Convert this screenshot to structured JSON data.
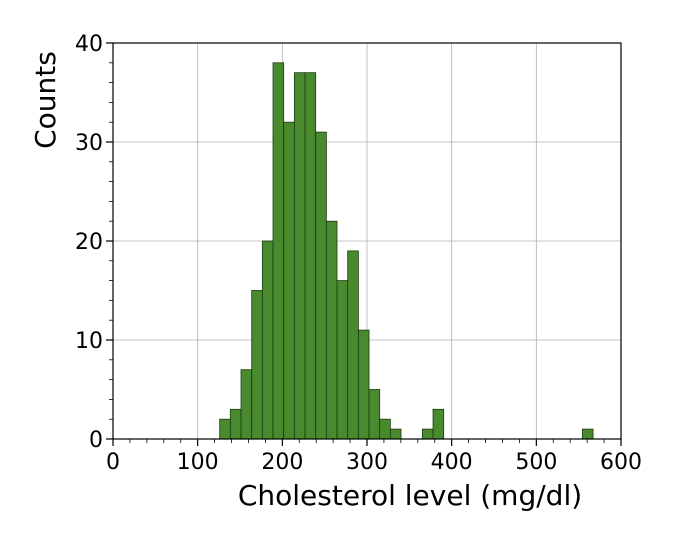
{
  "chart_data": {
    "type": "bar",
    "xlabel": "Cholesterol level (mg/dl)",
    "ylabel": "Counts",
    "xlim": [
      0,
      600
    ],
    "ylim": [
      0,
      40
    ],
    "x_ticks": [
      "0",
      "100",
      "200",
      "300",
      "400",
      "500",
      "600"
    ],
    "y_ticks": [
      "0",
      "10",
      "20",
      "30",
      "40"
    ],
    "grid": true,
    "bar_color": "#4a8a2e",
    "bin_width": 12.6,
    "bins": [
      {
        "start": 126.0,
        "count": 2
      },
      {
        "start": 138.6,
        "count": 3
      },
      {
        "start": 151.2,
        "count": 7
      },
      {
        "start": 163.8,
        "count": 15
      },
      {
        "start": 176.4,
        "count": 20
      },
      {
        "start": 189.0,
        "count": 38
      },
      {
        "start": 201.6,
        "count": 32
      },
      {
        "start": 214.2,
        "count": 37
      },
      {
        "start": 226.8,
        "count": 37
      },
      {
        "start": 239.4,
        "count": 31
      },
      {
        "start": 252.0,
        "count": 22
      },
      {
        "start": 264.6,
        "count": 16
      },
      {
        "start": 277.2,
        "count": 19
      },
      {
        "start": 289.8,
        "count": 11
      },
      {
        "start": 302.4,
        "count": 5
      },
      {
        "start": 315.0,
        "count": 2
      },
      {
        "start": 327.6,
        "count": 1
      },
      {
        "start": 365.4,
        "count": 1
      },
      {
        "start": 378.0,
        "count": 3
      },
      {
        "start": 554.4,
        "count": 1
      }
    ]
  }
}
